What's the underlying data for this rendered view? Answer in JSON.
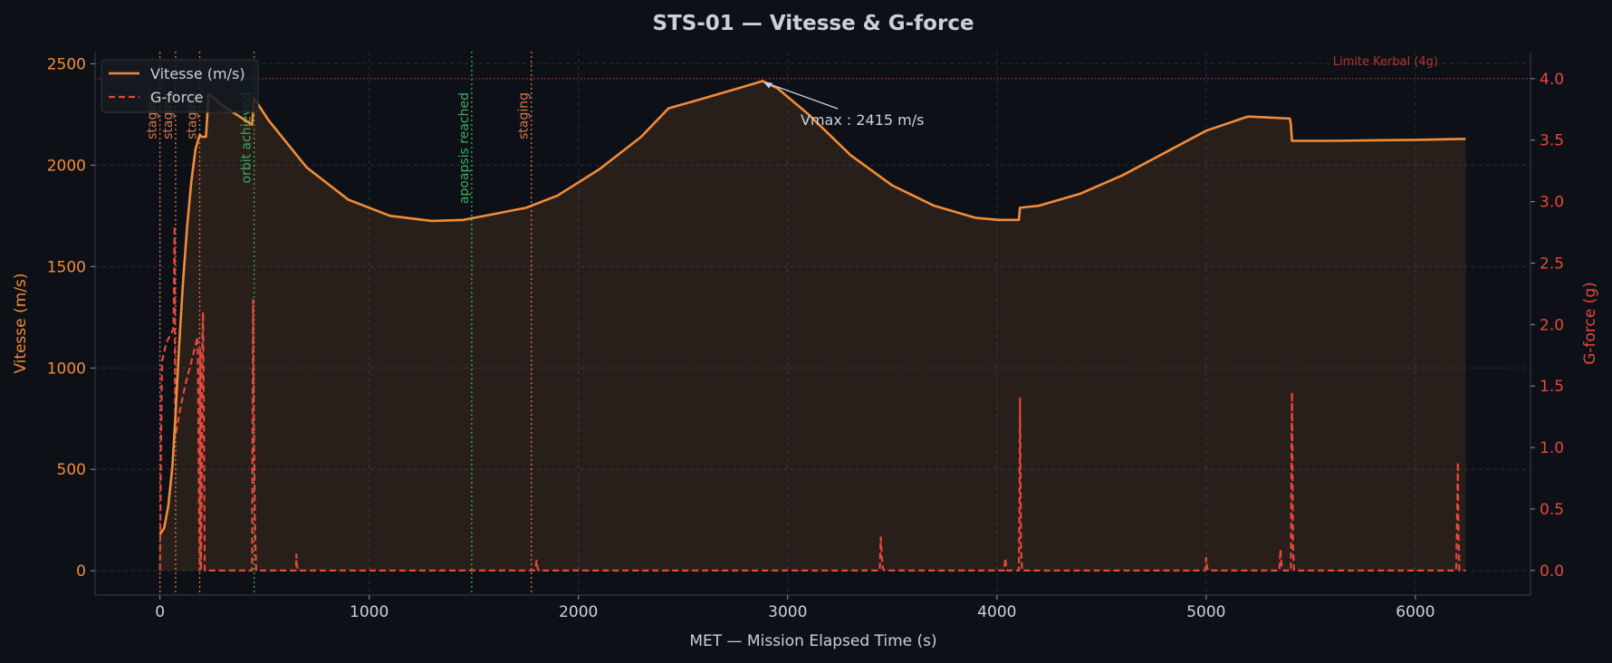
{
  "chart_data": {
    "type": "line",
    "title": "STS-01 — Vitesse & G-force",
    "xlabel": "MET — Mission Elapsed Time (s)",
    "ylabel_left": "Vitesse (m/s)",
    "ylabel_right": "G-force (g)",
    "xlim": [
      -310,
      6550
    ],
    "ylim_left": [
      -120,
      2560
    ],
    "ylim_right": [
      -0.2,
      4.22
    ],
    "x_ticks": [
      0,
      1000,
      2000,
      3000,
      4000,
      5000,
      6000
    ],
    "y_ticks_left": [
      0,
      500,
      1000,
      1500,
      2000,
      2500
    ],
    "y_ticks_right": [
      0.0,
      0.5,
      1.0,
      1.5,
      2.0,
      2.5,
      3.0,
      3.5,
      4.0
    ],
    "grid": true,
    "legend_position": "top-left",
    "colors": {
      "velocity": "#f28c38",
      "gforce": "#e5483b",
      "staging": "#d9774a",
      "orbit": "#3fae5a",
      "limit": "#b3342c",
      "annotation": "#c9d1d9"
    },
    "series": [
      {
        "name": "Vitesse (m/s)",
        "axis": "left",
        "style": "solid",
        "x": [
          0,
          20,
          40,
          60,
          75,
          90,
          110,
          130,
          150,
          170,
          190,
          200,
          220,
          230,
          230,
          260,
          290,
          320,
          350,
          380,
          410,
          440,
          450,
          520,
          700,
          900,
          1100,
          1300,
          1450,
          1600,
          1750,
          1900,
          2100,
          2300,
          2430,
          2600,
          2800,
          2880,
          2950,
          3100,
          3300,
          3500,
          3700,
          3900,
          4010,
          4105,
          4110,
          4200,
          4400,
          4600,
          4800,
          5000,
          5200,
          5400,
          5405,
          5410,
          5600,
          6000,
          6240
        ],
        "y": [
          180,
          210,
          320,
          520,
          780,
          1080,
          1420,
          1700,
          1920,
          2080,
          2150,
          2140,
          2140,
          2310,
          2350,
          2330,
          2300,
          2280,
          2260,
          2240,
          2220,
          2200,
          2330,
          2220,
          1990,
          1830,
          1750,
          1725,
          1730,
          1760,
          1790,
          1850,
          1980,
          2140,
          2280,
          2330,
          2390,
          2415,
          2380,
          2250,
          2050,
          1900,
          1800,
          1740,
          1730,
          1730,
          1790,
          1800,
          1860,
          1950,
          2060,
          2170,
          2240,
          2230,
          2200,
          2120,
          2120,
          2125,
          2130
        ]
      },
      {
        "name": "G-force",
        "axis": "right",
        "style": "dashed",
        "x": [
          0,
          5,
          10,
          30,
          60,
          65,
          70,
          72,
          74,
          76,
          80,
          95,
          120,
          150,
          180,
          183,
          186,
          190,
          192,
          194,
          196,
          200,
          203,
          206,
          210,
          214,
          220,
          222,
          224,
          226,
          230,
          232,
          440,
          445,
          450,
          455,
          460,
          650,
          652,
          654,
          660,
          1790,
          1795,
          1800,
          1805,
          1810,
          3440,
          3445,
          3450,
          3455,
          3460,
          4035,
          4040,
          4045,
          4050,
          4105,
          4108,
          4110,
          4112,
          4115,
          4120,
          4995,
          5000,
          5005,
          5010,
          5350,
          5355,
          5360,
          5365,
          5370,
          5405,
          5408,
          5410,
          5412,
          5415,
          5420,
          6195,
          6200,
          6203,
          6205,
          6210,
          6240
        ],
        "y": [
          0.0,
          1.0,
          1.7,
          1.85,
          1.95,
          1.98,
          2.8,
          1.5,
          1.2,
          1.1,
          1.15,
          1.3,
          1.5,
          1.7,
          1.9,
          1.4,
          0.7,
          0.0,
          1.8,
          0.6,
          0.0,
          0.8,
          1.9,
          2.1,
          1.2,
          0.0,
          0.0,
          0.0,
          0.0,
          0.0,
          0.0,
          0.0,
          0.0,
          2.2,
          1.0,
          0.3,
          0.0,
          0.0,
          0.13,
          0.05,
          0.0,
          0.0,
          0.02,
          0.08,
          0.02,
          0.0,
          0.0,
          0.27,
          0.1,
          0.02,
          0.0,
          0.0,
          0.1,
          0.02,
          0.0,
          0.0,
          0.6,
          1.4,
          1.0,
          0.2,
          0.0,
          0.0,
          0.1,
          0.02,
          0.0,
          0.0,
          0.17,
          0.05,
          0.02,
          0.0,
          0.0,
          1.0,
          1.45,
          1.0,
          0.2,
          0.0,
          0.0,
          0.5,
          0.88,
          0.4,
          0.0,
          0.0
        ]
      }
    ],
    "events": [
      {
        "x": 0,
        "label": "staging",
        "kind": "staging"
      },
      {
        "x": 75,
        "label": "staging",
        "kind": "staging"
      },
      {
        "x": 190,
        "label": "staging",
        "kind": "staging"
      },
      {
        "x": 450,
        "label": "orbit achieved",
        "kind": "orbit"
      },
      {
        "x": 1490,
        "label": "apoapsis reached",
        "kind": "orbit"
      },
      {
        "x": 1775,
        "label": "staging",
        "kind": "staging"
      }
    ],
    "hline_right": {
      "y": 4.0,
      "label": "Limite Kerbal (4g)"
    },
    "annotation": {
      "text": "Vmax : 2415 m/s",
      "x": 2880,
      "y": 2415
    }
  }
}
